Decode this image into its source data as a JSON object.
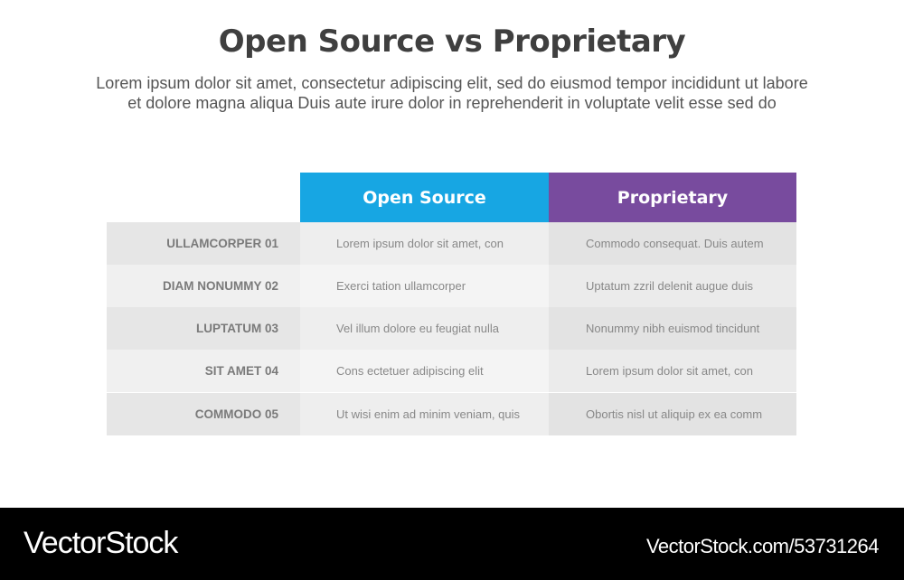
{
  "title": "Open Source vs Proprietary",
  "subtitle_line1": "Lorem ipsum dolor sit amet, consectetur adipiscing elit, sed do eiusmod tempor incididunt ut labore",
  "subtitle_line2": "et dolore magna aliqua Duis aute irure dolor in reprehenderit in voluptate velit esse sed do",
  "table": {
    "headers": [
      {
        "label": "Open Source",
        "color": "#17a6e3"
      },
      {
        "label": "Proprietary",
        "color": "#784b9e"
      }
    ],
    "rows": [
      {
        "label": "ULLAMCORPER 01",
        "open_source": "Lorem ipsum dolor sit amet, con",
        "proprietary": "Commodo consequat. Duis autem"
      },
      {
        "label": "DIAM NONUMMY 02",
        "open_source": "Exerci tation ullamcorper",
        "proprietary": "Uptatum zzril delenit augue duis"
      },
      {
        "label": "LUPTATUM 03",
        "open_source": "Vel illum dolore eu feugiat nulla",
        "proprietary": "Nonummy nibh euismod tincidunt"
      },
      {
        "label": "SIT AMET 04",
        "open_source": "Cons ectetuer adipiscing elit",
        "proprietary": "Lorem ipsum dolor sit amet, con"
      },
      {
        "label": "COMMODO 05",
        "open_source": "Ut wisi enim ad minim veniam, quis",
        "proprietary": "Obortis nisl ut aliquip ex ea comm"
      }
    ]
  },
  "footer": {
    "logo": "VectorStock",
    "url": "VectorStock.com/53731264"
  }
}
